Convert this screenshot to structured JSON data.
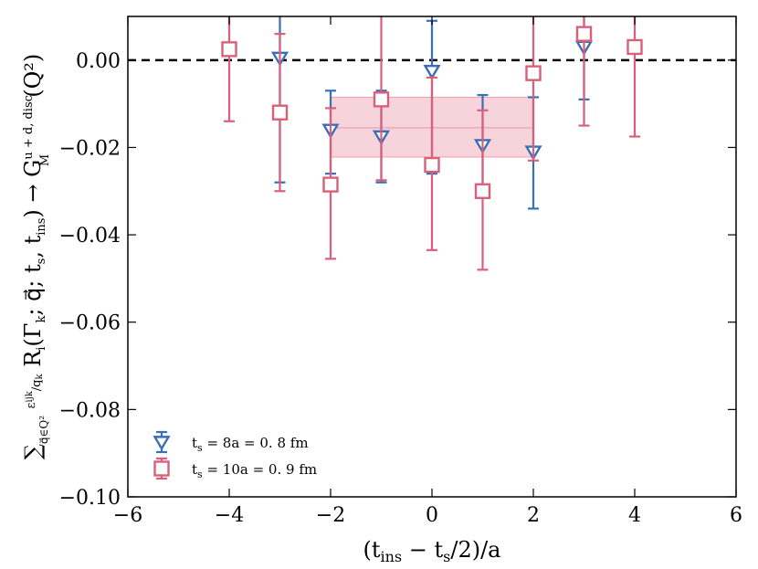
{
  "chart_data": {
    "type": "scatter",
    "title": "",
    "xlabel": "(t_ins − t_s/2)/a",
    "ylabel": "∑_{q⃗∈Q²} (ε^{ijk}/q_k) R_i(Γ_k; q⃗; t_s, t_ins) → G_M^{u+d, disc}(Q²)",
    "xlim": [
      -6,
      6
    ],
    "ylim": [
      -0.1,
      0.01
    ],
    "xticks": [
      "−6",
      "−4",
      "−2",
      "0",
      "2",
      "4",
      "6"
    ],
    "yticks": [
      "0.00",
      "−0.02",
      "−0.04",
      "−0.06",
      "−0.08",
      "−0.10"
    ],
    "xtick_values": [
      -6,
      -4,
      -2,
      0,
      2,
      4,
      6
    ],
    "ytick_values": [
      0.0,
      -0.02,
      -0.04,
      -0.06,
      -0.08,
      -0.1
    ],
    "reference_line": {
      "y": 0.0,
      "style": "dashed",
      "color": "#000000"
    },
    "fit_band": {
      "x": [
        -2,
        2
      ],
      "center": -0.0155,
      "lower": -0.0222,
      "upper": -0.0085,
      "color": "#f4c6d0"
    },
    "series": [
      {
        "name": "t_s = 8a = 0.8 fm",
        "legend_label": "t",
        "legend_sub": "s",
        "legend_rest": " = 8a = 0. 8 fm",
        "marker": "triangle-down",
        "color": "#3a6fb5",
        "x": [
          -3,
          -2,
          -1,
          0,
          1,
          2,
          3
        ],
        "y": [
          0.0005,
          -0.016,
          -0.0175,
          -0.0025,
          -0.0195,
          -0.021,
          0.003
        ],
        "yerr_low": [
          -0.028,
          -0.026,
          -0.028,
          -0.026,
          -0.031,
          -0.034,
          -0.009
        ],
        "yerr_high": [
          0.02,
          -0.007,
          -0.007,
          0.009,
          -0.008,
          -0.0085,
          0.02
        ]
      },
      {
        "name": "t_s = 10a = 0.9 fm",
        "legend_label": "t",
        "legend_sub": "s",
        "legend_rest": " = 10a = 0. 9 fm",
        "marker": "square",
        "color": "#d9607a",
        "x": [
          -4,
          -3,
          -2,
          -1,
          0,
          1,
          2,
          3,
          4
        ],
        "y": [
          0.0025,
          -0.012,
          -0.0285,
          -0.009,
          -0.024,
          -0.03,
          -0.003,
          0.006,
          0.003
        ],
        "yerr_low": [
          -0.014,
          -0.03,
          -0.0455,
          -0.0275,
          -0.0435,
          -0.048,
          -0.023,
          -0.015,
          -0.0175
        ],
        "yerr_high": [
          0.02,
          0.006,
          -0.011,
          0.02,
          -0.004,
          -0.0115,
          0.02,
          0.02,
          0.02
        ]
      }
    ],
    "legend_position": "lower-left"
  }
}
